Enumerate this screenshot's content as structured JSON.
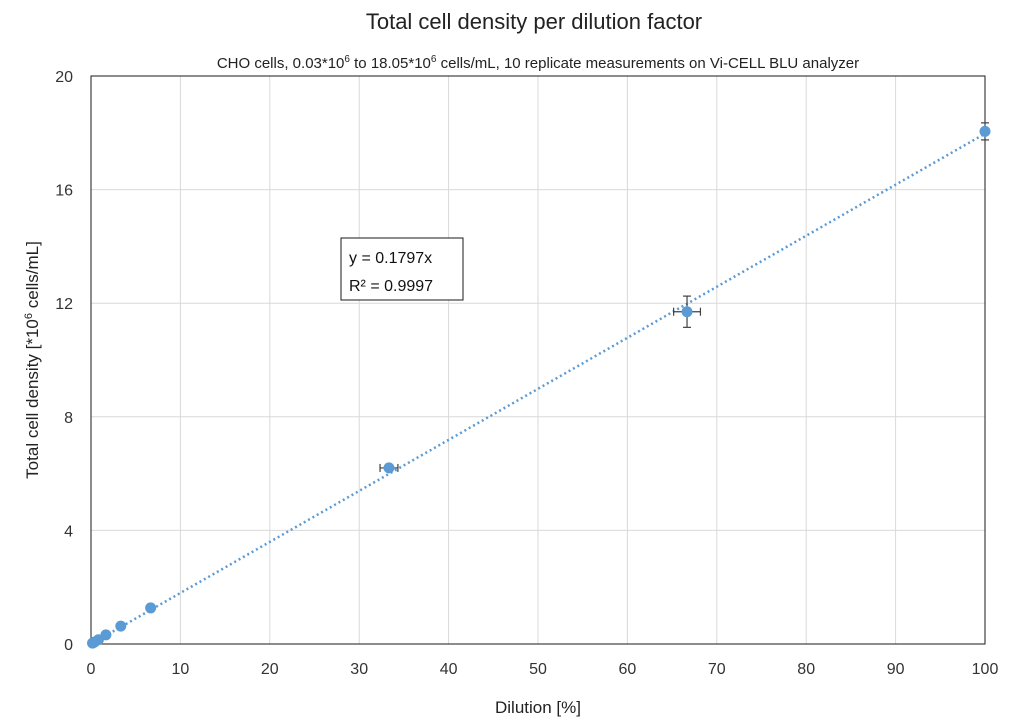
{
  "chart_data": {
    "type": "scatter",
    "title": "Total cell density per dilution factor",
    "subtitle": {
      "prefix": "CHO cells, 0.03*10",
      "sup1": "6",
      "mid": " to 18.05*10",
      "sup2": "6",
      "suffix": " cells/mL, 10 replicate measurements on Vi-CELL BLU analyzer"
    },
    "xlabel": "Dilution [%]",
    "ylabel": {
      "prefix": "Total cell density [*10",
      "sup": "6",
      "suffix": " cells/mL]"
    },
    "xlim": [
      0,
      100
    ],
    "ylim": [
      0,
      20
    ],
    "xticks": [
      0,
      10,
      20,
      30,
      40,
      50,
      60,
      70,
      80,
      90,
      100
    ],
    "yticks": [
      0,
      4,
      8,
      12,
      16,
      20
    ],
    "grid": true,
    "colors": {
      "series": "#5b9bd5",
      "error_bars": "#404040"
    },
    "points": [
      {
        "x": 0.17,
        "y": 0.03,
        "xerr": 0,
        "yerr": 0
      },
      {
        "x": 0.4,
        "y": 0.07,
        "xerr": 0,
        "yerr": 0
      },
      {
        "x": 0.83,
        "y": 0.15,
        "xerr": 0,
        "yerr": 0
      },
      {
        "x": 1.67,
        "y": 0.32,
        "xerr": 0,
        "yerr": 0
      },
      {
        "x": 3.33,
        "y": 0.63,
        "xerr": 0,
        "yerr": 0
      },
      {
        "x": 6.67,
        "y": 1.27,
        "xerr": 0,
        "yerr": 0
      },
      {
        "x": 33.33,
        "y": 6.2,
        "xerr": 1.0,
        "yerr": 0.05
      },
      {
        "x": 66.67,
        "y": 11.7,
        "xerr": 1.5,
        "yerr": 0.55
      },
      {
        "x": 100,
        "y": 18.05,
        "xerr": 0,
        "yerr": 0.3
      }
    ],
    "trendline": {
      "type": "linear-through-origin",
      "slope": 0.1797,
      "equation": "y = 0.1797x",
      "r_squared": "R² = 0.9997"
    }
  }
}
